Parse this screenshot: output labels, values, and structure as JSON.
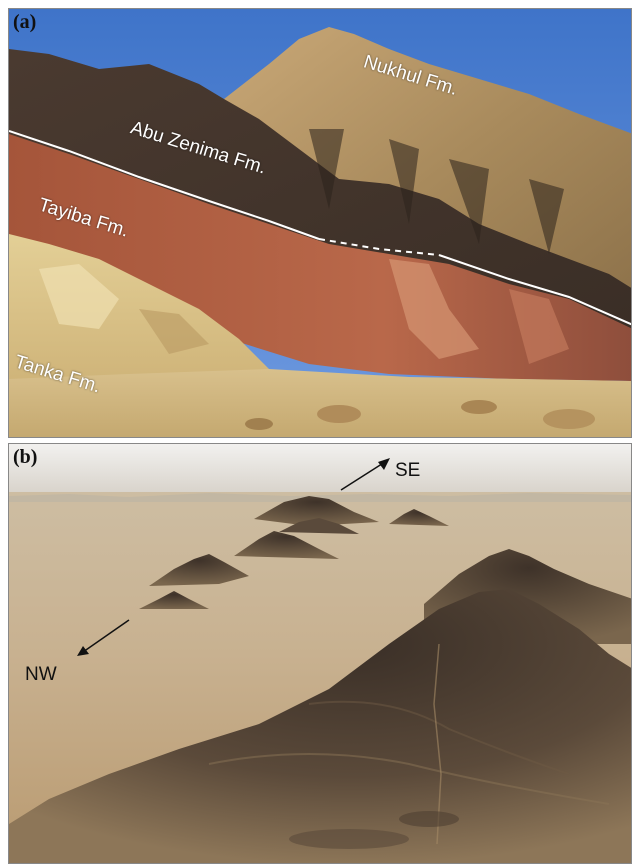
{
  "figure": {
    "panel_a": {
      "label": "(a)",
      "formations": {
        "nukhul": "Nukhul Fm.",
        "abu_zenima": "Abu Zenima Fm.",
        "tayiba": "Tayiba Fm.",
        "tanka": "Tanka Fm."
      }
    },
    "panel_b": {
      "label": "(b)",
      "directions": {
        "se": "SE",
        "nw": "NW"
      }
    }
  }
}
